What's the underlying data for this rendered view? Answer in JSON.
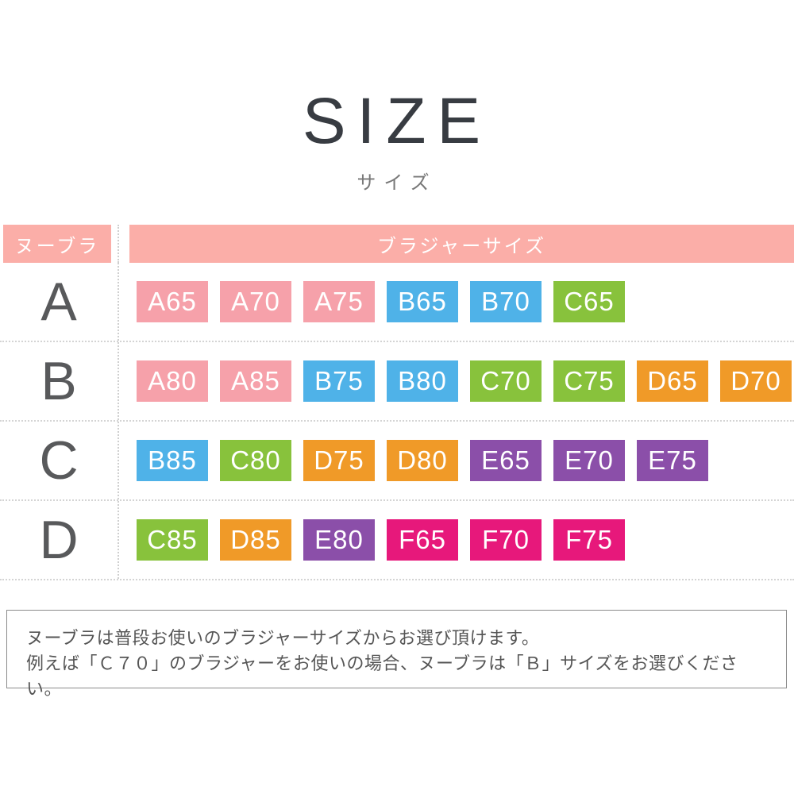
{
  "page": {
    "title": "SIZE",
    "subtitle": "サイズ"
  },
  "table": {
    "header_left": "ヌーブラ",
    "header_right": "ブラジャーサイズ",
    "rows": [
      {
        "label": "A",
        "badges": [
          {
            "text": "A65",
            "color": "pink"
          },
          {
            "text": "A70",
            "color": "pink"
          },
          {
            "text": "A75",
            "color": "pink"
          },
          {
            "text": "B65",
            "color": "blue"
          },
          {
            "text": "B70",
            "color": "blue"
          },
          {
            "text": "C65",
            "color": "green"
          }
        ]
      },
      {
        "label": "B",
        "badges": [
          {
            "text": "A80",
            "color": "pink"
          },
          {
            "text": "A85",
            "color": "pink"
          },
          {
            "text": "B75",
            "color": "blue"
          },
          {
            "text": "B80",
            "color": "blue"
          },
          {
            "text": "C70",
            "color": "green"
          },
          {
            "text": "C75",
            "color": "green"
          },
          {
            "text": "D65",
            "color": "orange"
          },
          {
            "text": "D70",
            "color": "orange"
          }
        ]
      },
      {
        "label": "C",
        "badges": [
          {
            "text": "B85",
            "color": "blue"
          },
          {
            "text": "C80",
            "color": "green"
          },
          {
            "text": "D75",
            "color": "orange"
          },
          {
            "text": "D80",
            "color": "orange"
          },
          {
            "text": "E65",
            "color": "purple"
          },
          {
            "text": "E70",
            "color": "purple"
          },
          {
            "text": "E75",
            "color": "purple"
          }
        ]
      },
      {
        "label": "D",
        "badges": [
          {
            "text": "C85",
            "color": "green"
          },
          {
            "text": "D85",
            "color": "orange"
          },
          {
            "text": "E80",
            "color": "purple"
          },
          {
            "text": "F65",
            "color": "magenta"
          },
          {
            "text": "F70",
            "color": "magenta"
          },
          {
            "text": "F75",
            "color": "magenta"
          }
        ]
      }
    ]
  },
  "colors": {
    "header_pink": "#fbaea8",
    "pink": "#f6a1aa",
    "blue": "#4fb2e8",
    "green": "#88c23c",
    "orange": "#f09a28",
    "purple": "#8b4fa9",
    "magenta": "#e7187b"
  },
  "note": {
    "line1": "ヌーブラは普段お使いのブラジャーサイズからお選び頂けます。",
    "line2": "例えば「Ｃ７０」のブラジャーをお使いの場合、ヌーブラは「Ｂ」サイズをお選びください。"
  }
}
